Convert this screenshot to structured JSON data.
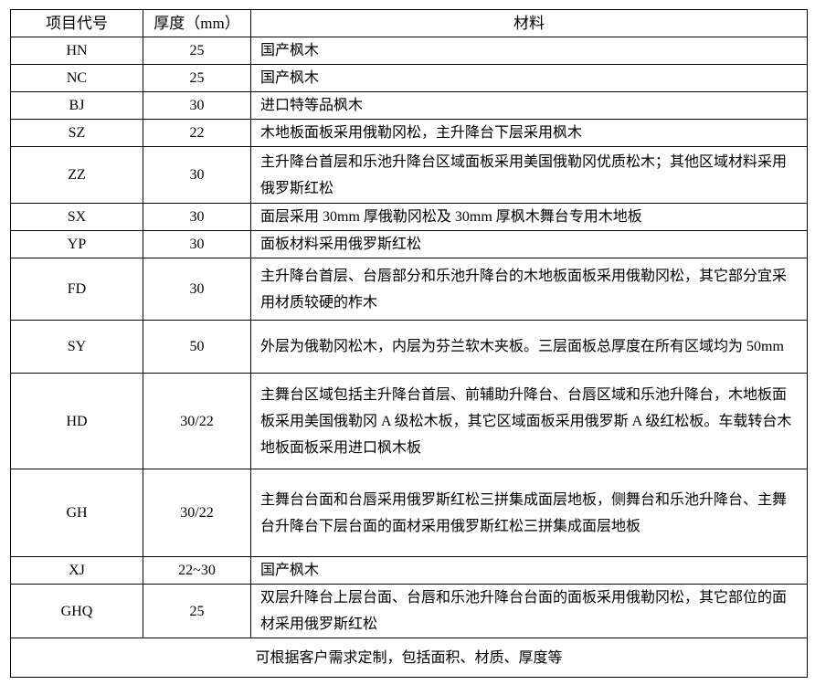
{
  "table": {
    "headers": [
      "项目代号",
      "厚度（mm）",
      "材料"
    ],
    "rows": [
      {
        "code": "HN",
        "thickness": "25",
        "material": "国产枫木"
      },
      {
        "code": "NC",
        "thickness": "25",
        "material": "国产枫木"
      },
      {
        "code": "BJ",
        "thickness": "30",
        "material": "进口特等品枫木"
      },
      {
        "code": "SZ",
        "thickness": "22",
        "material": "木地板面板采用俄勒冈松，主升降台下层采用枫木"
      },
      {
        "code": "ZZ",
        "thickness": "30",
        "material": "主升降台首层和乐池升降台区域面板采用美国俄勒冈优质松木；其他区域材料采用俄罗斯红松"
      },
      {
        "code": "SX",
        "thickness": "30",
        "material": "面层采用 30mm 厚俄勒冈松及 30mm 厚枫木舞台专用木地板"
      },
      {
        "code": "YP",
        "thickness": "30",
        "material": "面板材料采用俄罗斯红松"
      },
      {
        "code": "FD",
        "thickness": "30",
        "material": "主升降台首层、台唇部分和乐池升降台的木地板面板采用俄勒冈松，其它部分宜采用材质较硬的柞木"
      },
      {
        "code": "SY",
        "thickness": "50",
        "material": "外层为俄勒冈松木，内层为芬兰软木夹板。三层面板总厚度在所有区域均为 50mm"
      },
      {
        "code": "HD",
        "thickness": "30/22",
        "material": "主舞台区域包括主升降台首层、前辅助升降台、台唇区域和乐池升降台，木地板面板采用美国俄勒冈 A 级松木板，其它区域面板采用俄罗斯 A 级红松板。车载转台木地板面板采用进口枫木板"
      },
      {
        "code": "GH",
        "thickness": "30/22",
        "material": "主舞台台面和台唇采用俄罗斯红松三拼集成面层地板，侧舞台和乐池升降台、主舞台升降台下层台面的面材采用俄罗斯红松三拼集成面层地板"
      },
      {
        "code": "XJ",
        "thickness": "22~30",
        "material": "国产枫木"
      },
      {
        "code": "GHQ",
        "thickness": "25",
        "material": "双层升降台上层台面、台唇和乐池升降台台面的面板采用俄勒冈松，其它部位的面材采用俄罗斯红松"
      }
    ],
    "footer": "可根据客户需求定制，包括面积、材质、厚度等"
  }
}
